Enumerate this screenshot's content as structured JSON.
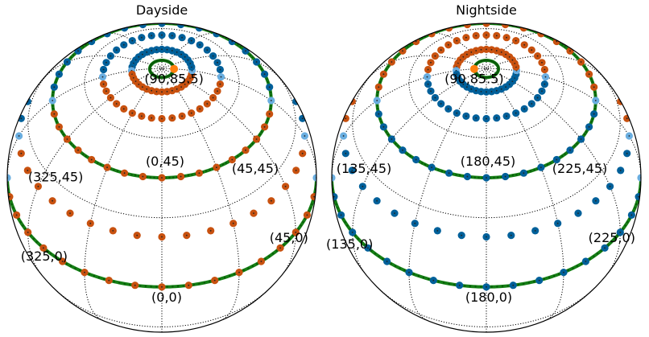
{
  "chart_data": [
    {
      "type": "scatter",
      "projection": "orthographic",
      "title": "Dayside",
      "center": [
        0,
        45
      ],
      "annotations": [
        {
          "text": "(90,85.5)",
          "lon": 90,
          "lat": 85.5
        },
        {
          "text": "(325,45)",
          "lon": 325,
          "lat": 45
        },
        {
          "text": "(45,45)",
          "lon": 45,
          "lat": 45
        },
        {
          "text": "(0,45)",
          "lon": 0,
          "lat": 45
        },
        {
          "text": "(325,0)",
          "lon": 325,
          "lat": 0
        },
        {
          "text": "(45,0)",
          "lon": 45,
          "lat": 0
        },
        {
          "text": "(0,0)",
          "lon": 0,
          "lat": 0
        }
      ],
      "highlight_point": {
        "lon": 90,
        "lat": 85.5
      }
    },
    {
      "type": "scatter",
      "projection": "orthographic",
      "title": "Nightside",
      "center": [
        180,
        45
      ],
      "annotations": [
        {
          "text": "(90,85.5)",
          "lon": 90,
          "lat": 85.5
        },
        {
          "text": "(135,45)",
          "lon": 135,
          "lat": 45
        },
        {
          "text": "(225,45)",
          "lon": 225,
          "lat": 45
        },
        {
          "text": "(180,45)",
          "lon": 180,
          "lat": 45
        },
        {
          "text": "(135,0)",
          "lon": 135,
          "lat": 0
        },
        {
          "text": "(225,0)",
          "lon": 225,
          "lat": 0
        },
        {
          "text": "(180,0)",
          "lon": 180,
          "lat": 0
        }
      ],
      "highlight_point": {
        "lon": 90,
        "lat": 85.5
      }
    }
  ],
  "series": {
    "grid_parallels": [
      -30,
      0,
      30,
      60
    ],
    "grid_meridians": [
      0,
      30,
      60,
      90,
      120,
      150,
      180,
      210,
      240,
      270,
      300,
      330
    ],
    "dot_parallels": [
      0,
      22.5,
      45,
      67.5,
      78.75
    ],
    "dot_lon_step": 10,
    "green_parallels": [
      0,
      45,
      85.5
    ],
    "colors": {
      "dayside": "#c8510f",
      "nightside": "#00609a",
      "terminator": "#6aaee0",
      "highlight": "#ff7f0e",
      "green": "#158015",
      "grid": "#000000"
    }
  }
}
